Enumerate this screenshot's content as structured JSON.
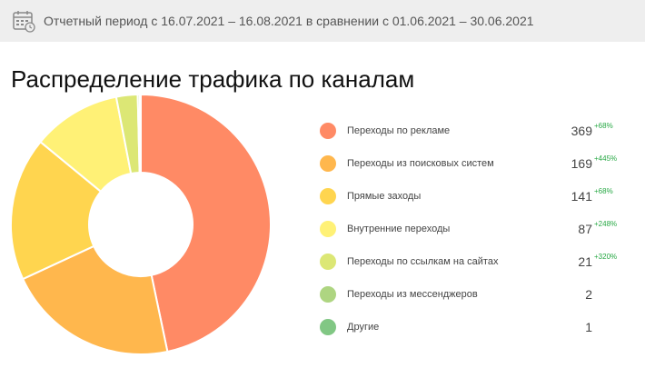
{
  "period": {
    "icon": "calendar-icon",
    "text": "Отчетный период с 16.07.2021 – 16.08.2021 в сравнении с 01.06.2021 – 30.06.2021"
  },
  "chart_data": {
    "type": "pie",
    "title": "Распределение трафика по каналам",
    "donut": true,
    "legend_position": "right",
    "series": [
      {
        "name": "Переходы по рекламе",
        "value": 369,
        "change": "+68%",
        "color": "#ff8a65"
      },
      {
        "name": "Переходы из поисковых систем",
        "value": 169,
        "change": "+445%",
        "color": "#ffb74d"
      },
      {
        "name": "Прямые заходы",
        "value": 141,
        "change": "+68%",
        "color": "#ffd54f"
      },
      {
        "name": "Внутренние переходы",
        "value": 87,
        "change": "+248%",
        "color": "#fff176"
      },
      {
        "name": "Переходы по ссылкам на сайтах",
        "value": 21,
        "change": "+320%",
        "color": "#dce775"
      },
      {
        "name": "Переходы из мессенджеров",
        "value": 2,
        "change": "",
        "color": "#aed581"
      },
      {
        "name": "Другие",
        "value": 1,
        "change": "",
        "color": "#81c784"
      }
    ]
  }
}
